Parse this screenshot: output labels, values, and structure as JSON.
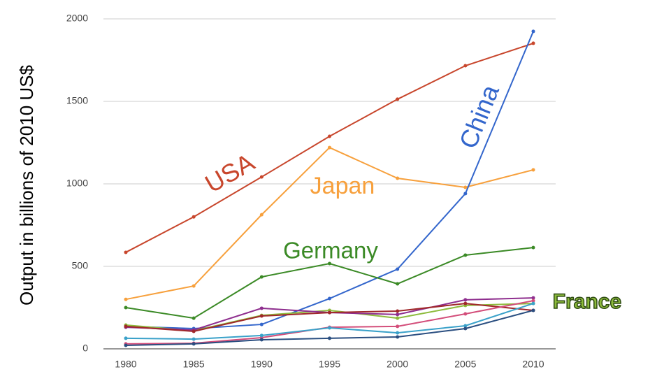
{
  "chart_data": {
    "type": "line",
    "y_label": "Output in billions of 2010 US$",
    "categories": [
      "1980",
      "1985",
      "1990",
      "1995",
      "2000",
      "2005",
      "2010"
    ],
    "ylim": [
      0,
      2000
    ],
    "yticks": [
      0,
      500,
      1000,
      1500,
      2000
    ],
    "grid": true,
    "series": [
      {
        "name": "USA",
        "color": "#c8462c",
        "values": [
          585,
          800,
          1042,
          1288,
          1513,
          1716,
          1852
        ]
      },
      {
        "name": "Japan",
        "color": "#f7a03c",
        "values": [
          300,
          381,
          813,
          1220,
          1034,
          979,
          1085
        ]
      },
      {
        "name": "China",
        "color": "#3366cc",
        "values": [
          136,
          123,
          148,
          305,
          483,
          941,
          1924
        ]
      },
      {
        "name": "Germany",
        "color": "#3b8a26",
        "values": [
          250,
          186,
          436,
          517,
          394,
          568,
          614
        ]
      },
      {
        "name": "France",
        "color": "#8dbb3c",
        "values": [
          144,
          110,
          203,
          233,
          186,
          263,
          275
        ]
      },
      {
        "color": "#8e2e8e",
        "values": [
          131,
          114,
          246,
          220,
          208,
          297,
          309
        ]
      },
      {
        "color": "#a0282a",
        "values": [
          136,
          106,
          199,
          220,
          229,
          275,
          233
        ]
      },
      {
        "color": "#d34d7a",
        "values": [
          30,
          34,
          68,
          131,
          136,
          212,
          292
        ]
      },
      {
        "color": "#3aa1c9",
        "values": [
          64,
          59,
          81,
          127,
          97,
          140,
          275
        ]
      },
      {
        "color": "#2a4e80",
        "values": [
          21,
          30,
          55,
          64,
          72,
          123,
          233
        ]
      }
    ]
  }
}
